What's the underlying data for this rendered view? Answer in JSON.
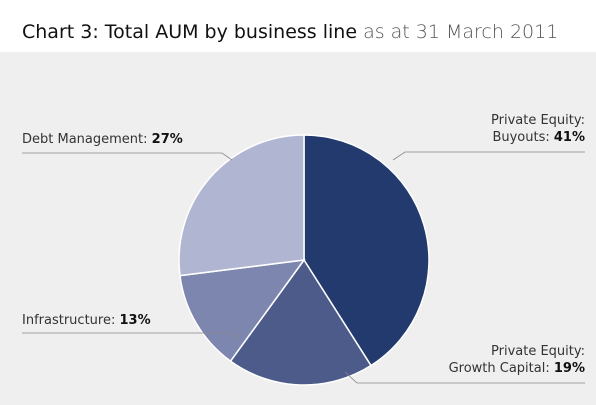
{
  "chart_data": {
    "type": "pie",
    "title": "Chart 3: Total AUM by business line",
    "subtitle": "as at 31 March 2011",
    "categories": [
      [
        "Private Equity:",
        "Buyouts:"
      ],
      [
        "Private Equity:",
        "Growth Capital:"
      ],
      [
        "Infrastructure:"
      ],
      [
        "Debt Management:"
      ]
    ],
    "values": [
      41,
      19,
      13,
      27
    ],
    "value_labels": [
      "41%",
      "19%",
      "13%",
      "27%"
    ],
    "colors": [
      "#233a6e",
      "#4d5b8a",
      "#7c86ae",
      "#b0b6d2"
    ]
  }
}
